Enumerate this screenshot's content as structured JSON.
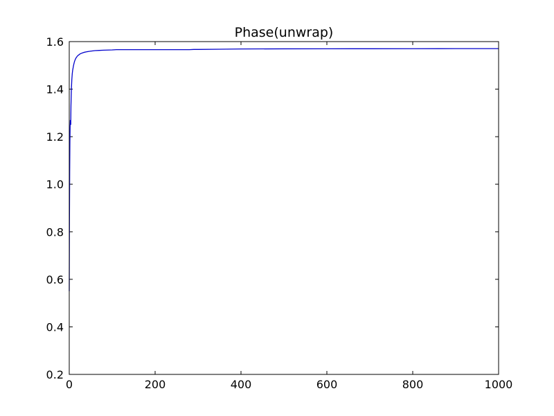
{
  "chart_data": {
    "type": "line",
    "title": "Phase(unwrap)",
    "xlabel": "",
    "ylabel": "",
    "xlim": [
      0,
      1000
    ],
    "ylim": [
      0.2,
      1.6
    ],
    "xticks": [
      0,
      200,
      400,
      600,
      800,
      1000
    ],
    "xtick_labels": [
      "0",
      "200",
      "400",
      "600",
      "800",
      "1000"
    ],
    "yticks": [
      0.2,
      0.4,
      0.6,
      0.8,
      1.0,
      1.2,
      1.4,
      1.6
    ],
    "ytick_labels": [
      "0.2",
      "0.4",
      "0.6",
      "0.8",
      "1.0",
      "1.2",
      "1.4",
      "1.6"
    ],
    "grid": false,
    "line_color": "#0000cc",
    "series": [
      {
        "x": [
          0,
          0.5,
          1,
          1.5,
          2,
          2.5,
          3,
          3.5,
          4,
          5,
          6,
          7,
          8,
          9,
          10,
          12,
          14,
          16,
          18,
          20,
          25,
          30,
          35,
          40,
          50,
          60,
          70,
          80,
          100,
          110,
          120,
          150,
          200,
          250,
          280,
          290,
          300,
          350,
          400,
          500,
          600,
          700,
          800,
          900,
          1000
        ],
        "y": [
          0.55,
          0.85,
          1.05,
          1.18,
          1.24,
          1.27,
          1.26,
          1.25,
          1.33,
          1.4,
          1.44,
          1.465,
          1.48,
          1.49,
          1.5,
          1.515,
          1.525,
          1.532,
          1.537,
          1.541,
          1.548,
          1.552,
          1.555,
          1.557,
          1.56,
          1.562,
          1.563,
          1.564,
          1.565,
          1.566,
          1.566,
          1.566,
          1.566,
          1.566,
          1.566,
          1.567,
          1.567,
          1.568,
          1.569,
          1.5695,
          1.5698,
          1.57,
          1.5702,
          1.5704,
          1.5705
        ]
      }
    ]
  }
}
